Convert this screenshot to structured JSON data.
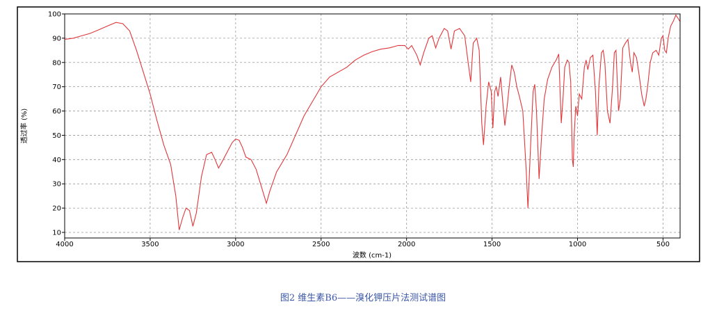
{
  "chart_data": {
    "type": "line",
    "caption": "图2 维生素B6——溴化钾压片法测试谱图",
    "x_label": "波数 (cm-1)",
    "y_label": "透过率 (%)",
    "color": "#e0363a",
    "grid": true,
    "xlim": [
      4000,
      400
    ],
    "ylim": [
      7.7,
      100
    ],
    "xticks": [
      4000,
      3500,
      3000,
      2500,
      2000,
      1500,
      1000,
      500
    ],
    "yticks": [
      10,
      20,
      30,
      40,
      50,
      60,
      70,
      80,
      90,
      100
    ],
    "x": [
      4000,
      3950,
      3900,
      3850,
      3800,
      3750,
      3700,
      3660,
      3620,
      3580,
      3540,
      3500,
      3460,
      3420,
      3380,
      3350,
      3330,
      3310,
      3290,
      3270,
      3250,
      3230,
      3200,
      3170,
      3140,
      3120,
      3100,
      3080,
      3050,
      3020,
      3000,
      2980,
      2960,
      2940,
      2910,
      2880,
      2850,
      2820,
      2800,
      2760,
      2700,
      2650,
      2600,
      2550,
      2500,
      2450,
      2400,
      2350,
      2300,
      2250,
      2200,
      2150,
      2100,
      2050,
      2010,
      1990,
      1970,
      1940,
      1920,
      1900,
      1870,
      1850,
      1830,
      1810,
      1780,
      1760,
      1740,
      1720,
      1690,
      1660,
      1640,
      1625,
      1610,
      1590,
      1575,
      1560,
      1550,
      1535,
      1520,
      1505,
      1495,
      1485,
      1475,
      1465,
      1450,
      1440,
      1425,
      1410,
      1400,
      1385,
      1370,
      1355,
      1340,
      1320,
      1300,
      1290,
      1275,
      1260,
      1250,
      1240,
      1225,
      1210,
      1195,
      1175,
      1150,
      1125,
      1110,
      1095,
      1085,
      1075,
      1060,
      1050,
      1040,
      1030,
      1025,
      1020,
      1010,
      1000,
      990,
      975,
      960,
      950,
      940,
      925,
      910,
      895,
      885,
      875,
      860,
      850,
      840,
      825,
      810,
      795,
      785,
      775,
      760,
      750,
      735,
      720,
      705,
      690,
      680,
      670,
      655,
      640,
      625,
      610,
      600,
      590,
      575,
      560,
      540,
      525,
      510,
      500,
      490,
      480,
      470,
      455,
      440,
      425,
      410,
      402
    ],
    "values": [
      89.5,
      90,
      91,
      92,
      93.5,
      95,
      96.5,
      96,
      93,
      85,
      76,
      67,
      56,
      46,
      38,
      25,
      11,
      16,
      20,
      19,
      12.5,
      18,
      33,
      42,
      43,
      40,
      36.5,
      39,
      43,
      47,
      48.5,
      48,
      45,
      41,
      40,
      36,
      29,
      22,
      27,
      35,
      42,
      50,
      58,
      64,
      70,
      74,
      76,
      78,
      81,
      83,
      84.5,
      85.5,
      86,
      87,
      87,
      85.5,
      87,
      83,
      79,
      84,
      90,
      91,
      86,
      90,
      94,
      93,
      85.5,
      93,
      94,
      91,
      80,
      72,
      88,
      90,
      85,
      55,
      46,
      62,
      72,
      68,
      53,
      68,
      70,
      66,
      74,
      66,
      54,
      63,
      70,
      79,
      76,
      70,
      66,
      60,
      35,
      20,
      45,
      68,
      71,
      60,
      32,
      50,
      65,
      73,
      78,
      81,
      83.5,
      55,
      65,
      78,
      81,
      80,
      72,
      40,
      37,
      50,
      62,
      58,
      67,
      65,
      78,
      81,
      77,
      82,
      83,
      68,
      50,
      70,
      84,
      85,
      80,
      60,
      55,
      70,
      84,
      85,
      60,
      65,
      86,
      88,
      89.5,
      80,
      76,
      84,
      82,
      75,
      67,
      62,
      65,
      70,
      80,
      84,
      85,
      83,
      90,
      91,
      85,
      84,
      90,
      95,
      97,
      99.5,
      98,
      97
    ]
  }
}
